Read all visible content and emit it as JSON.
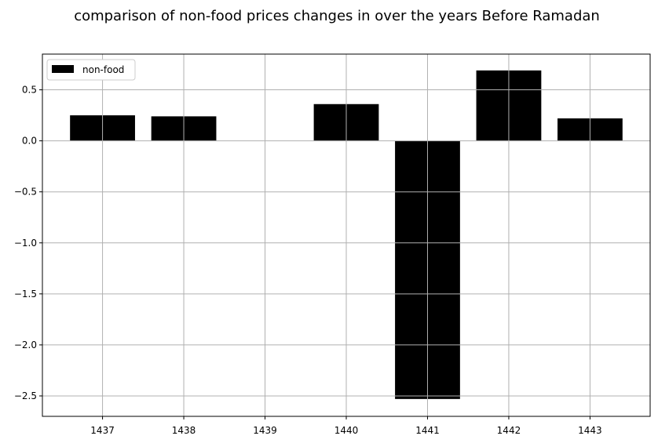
{
  "chart_data": {
    "type": "bar",
    "title": "comparison of non-food prices changes in over the years Before Ramadan",
    "xlabel": "",
    "ylabel": "",
    "categories": [
      "1437",
      "1438",
      "1439",
      "1440",
      "1441",
      "1442",
      "1443"
    ],
    "series": [
      {
        "name": "non-food",
        "values": [
          0.25,
          0.24,
          0.0,
          0.36,
          -2.53,
          0.69,
          0.22
        ]
      }
    ],
    "ylim": [
      -2.7,
      0.85
    ],
    "yticks": [
      0.5,
      0.0,
      -0.5,
      -1.0,
      -1.5,
      -2.0,
      -2.5
    ],
    "ytick_labels": [
      "0.5",
      "0.0",
      "−0.5",
      "−1.0",
      "−1.5",
      "−2.0",
      "−2.5"
    ],
    "grid": true,
    "legend_position": "top-left",
    "colors": {
      "bar": "#000000",
      "grid": "#b0b0b0",
      "axes": "#000000"
    }
  }
}
